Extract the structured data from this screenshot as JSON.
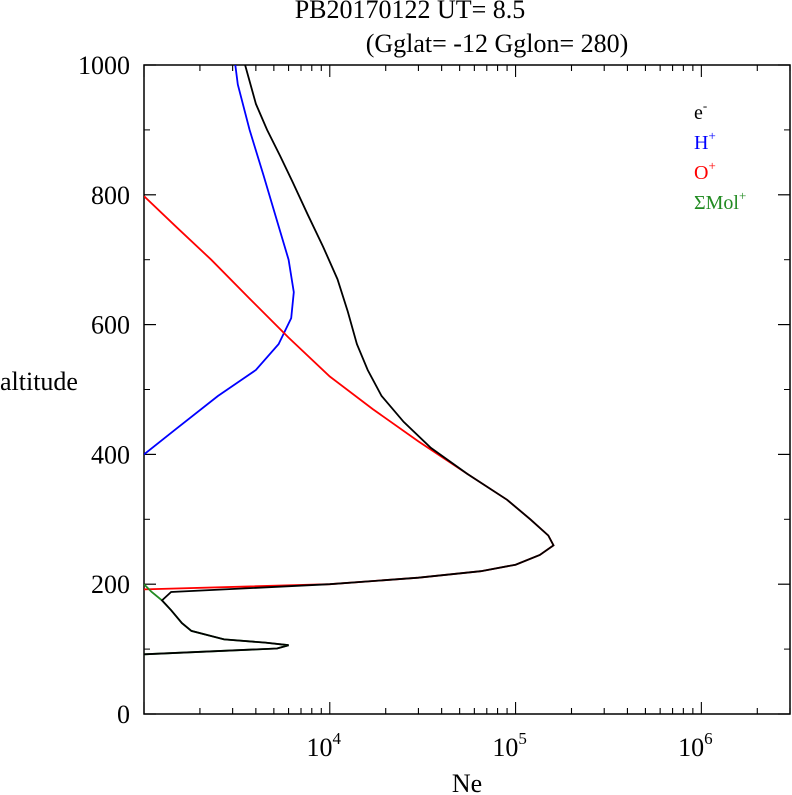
{
  "chart_data": {
    "type": "line",
    "title": "PB20170122   UT=  8.5",
    "subtitle": "(Gglat= -12   Gglon=  280)",
    "xlabel": "Ne",
    "ylabel": "altitude",
    "x_scale": "log",
    "xlim": [
      1000,
      3000000
    ],
    "ylim": [
      0,
      1000
    ],
    "y_ticks": [
      0,
      200,
      400,
      600,
      800,
      1000
    ],
    "x_ticks": [
      {
        "value": 10000,
        "base": "10",
        "exp": "4"
      },
      {
        "value": 100000,
        "base": "10",
        "exp": "5"
      },
      {
        "value": 1000000,
        "base": "10",
        "exp": "6"
      }
    ],
    "legend_position": "top-right",
    "series": [
      {
        "name": "e",
        "sup": "-",
        "color": "#000000",
        "points": [
          [
            1000,
            92
          ],
          [
            5200,
            101
          ],
          [
            6000,
            106
          ],
          [
            4500,
            110
          ],
          [
            2700,
            115
          ],
          [
            1800,
            128
          ],
          [
            1600,
            140
          ],
          [
            1400,
            160
          ],
          [
            1250,
            175
          ],
          [
            1400,
            188
          ],
          [
            10000,
            200
          ],
          [
            30000,
            210
          ],
          [
            65000,
            220
          ],
          [
            100000,
            230
          ],
          [
            135000,
            245
          ],
          [
            160000,
            260
          ],
          [
            150000,
            275
          ],
          [
            120000,
            300
          ],
          [
            90000,
            330
          ],
          [
            55000,
            370
          ],
          [
            35000,
            410
          ],
          [
            25000,
            450
          ],
          [
            19000,
            490
          ],
          [
            16000,
            530
          ],
          [
            14000,
            570
          ],
          [
            12500,
            620
          ],
          [
            11000,
            670
          ],
          [
            9200,
            720
          ],
          [
            7600,
            770
          ],
          [
            6300,
            820
          ],
          [
            5400,
            860
          ],
          [
            4600,
            900
          ],
          [
            4000,
            940
          ],
          [
            3500,
            1000
          ]
        ]
      },
      {
        "name": "H",
        "sup": "+",
        "color": "#0000ff",
        "points": [
          [
            1000,
            400
          ],
          [
            1500,
            440
          ],
          [
            2500,
            490
          ],
          [
            4000,
            530
          ],
          [
            5300,
            570
          ],
          [
            6200,
            610
          ],
          [
            6400,
            650
          ],
          [
            6000,
            700
          ],
          [
            5200,
            760
          ],
          [
            4400,
            830
          ],
          [
            3700,
            900
          ],
          [
            3200,
            970
          ],
          [
            3100,
            1000
          ]
        ]
      },
      {
        "name": "O",
        "sup": "+",
        "color": "#ff0000",
        "points": [
          [
            1000,
            192
          ],
          [
            10000,
            200
          ],
          [
            30000,
            210
          ],
          [
            65000,
            220
          ],
          [
            100000,
            230
          ],
          [
            135000,
            245
          ],
          [
            160000,
            260
          ],
          [
            150000,
            275
          ],
          [
            120000,
            300
          ],
          [
            90000,
            330
          ],
          [
            55000,
            370
          ],
          [
            30000,
            420
          ],
          [
            17000,
            470
          ],
          [
            10000,
            520
          ],
          [
            6000,
            580
          ],
          [
            3700,
            640
          ],
          [
            2300,
            700
          ],
          [
            1500,
            750
          ],
          [
            1000,
            798
          ]
        ]
      },
      {
        "name": "ΣMol",
        "sup": "+",
        "color": "#228b22",
        "points": [
          [
            1000,
            92
          ],
          [
            5200,
            101
          ],
          [
            6000,
            106
          ],
          [
            4500,
            110
          ],
          [
            2700,
            115
          ],
          [
            1800,
            128
          ],
          [
            1600,
            140
          ],
          [
            1400,
            160
          ],
          [
            1250,
            175
          ],
          [
            1100,
            188
          ],
          [
            1000,
            200
          ]
        ]
      }
    ]
  }
}
